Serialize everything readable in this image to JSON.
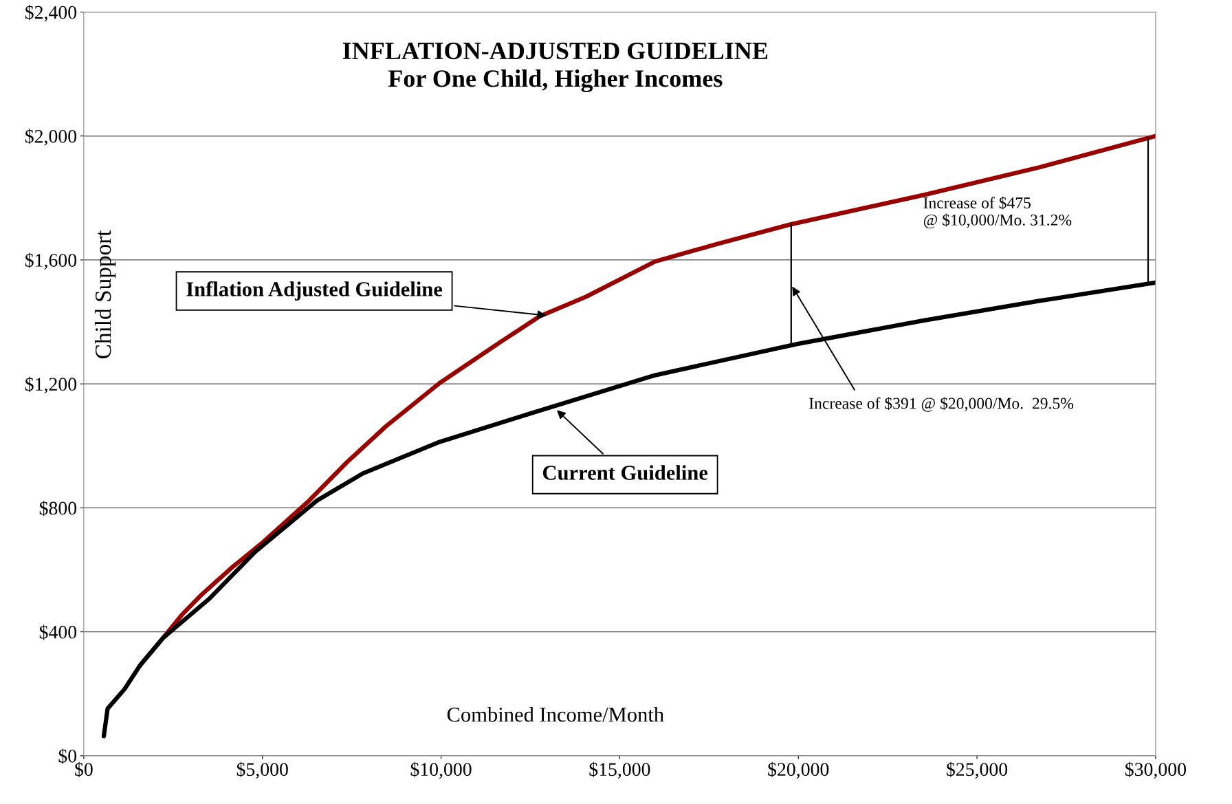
{
  "chart_data": {
    "type": "line",
    "title": "INFLATION-ADJUSTED GUIDELINE\nFor One Child, Higher Incomes",
    "xlabel": "Combined Income/Month",
    "ylabel": "Child Support",
    "series": [
      {
        "color": "#990000",
        "x": [
          1571,
          2216,
          2755,
          3290,
          4153,
          5014,
          6305,
          7381,
          8457,
          9963,
          11685,
          12761,
          14052,
          15989,
          17711,
          19755,
          23521,
          26749,
          30000
        ],
        "values": [
          291,
          380,
          456,
          519,
          608,
          689,
          823,
          949,
          1063,
          1203,
          1337,
          1418,
          1481,
          1595,
          1651,
          1714,
          1810,
          1899,
          2000
        ]
      },
      {
        "color": "#000000",
        "x": [
          560,
          667,
          1140,
          1571,
          2216,
          3507,
          4798,
          6520,
          7811,
          9963,
          12761,
          15989,
          19970,
          23521,
          26749,
          30000
        ],
        "values": [
          63,
          152,
          215,
          291,
          380,
          506,
          658,
          823,
          911,
          1013,
          1114,
          1228,
          1329,
          1405,
          1468,
          1527
        ]
      }
    ],
    "annotations": [
      {
        "text": "Inflation Adjusted Guideline",
        "x": 13000,
        "y": 1420
      },
      {
        "text": "Current Guideline",
        "x": 13200,
        "y": 1120
      },
      "Increase of $391 @ $20,000/Mo.  29.5%",
      "Increase of $475\n@ $10,000/Mo. 31.2%"
    ],
    "xlim": [
      0,
      30000
    ],
    "ylim": [
      0,
      2400
    ],
    "xticks": [
      {
        "value": 0,
        "label": "$0"
      },
      {
        "value": 5000,
        "label": "$5,000"
      },
      {
        "value": 10000,
        "label": "$10,000"
      },
      {
        "value": 15000,
        "label": "$15,000"
      },
      {
        "value": 20000,
        "label": "$20,000"
      },
      {
        "value": 25000,
        "label": "$25,000"
      },
      {
        "value": 30000,
        "label": "$30,000"
      }
    ],
    "yticks": [
      {
        "value": 0,
        "label": "$0"
      },
      {
        "value": 400,
        "label": "$400"
      },
      {
        "value": 800,
        "label": "$800"
      },
      {
        "value": 1200,
        "label": "$1,200"
      },
      {
        "value": 1600,
        "label": "$1,600"
      },
      {
        "value": 2000,
        "label": "$2,000"
      },
      {
        "value": 2400,
        "label": "$2,400"
      }
    ],
    "grid": "y",
    "legend": false
  }
}
